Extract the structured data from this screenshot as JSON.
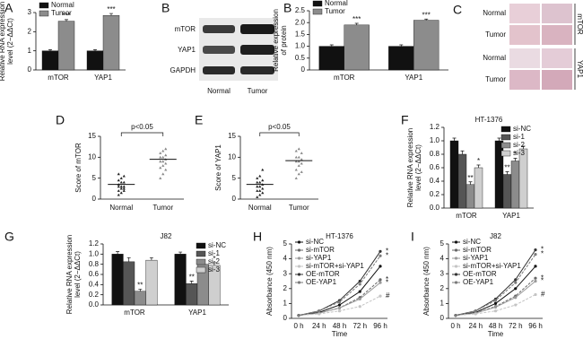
{
  "chart_data": [
    {
      "type": "bar",
      "panel": "A",
      "ylabel": [
        "Relative RNA expression",
        "level (2−ΔΔCt)"
      ],
      "categories": [
        "mTOR",
        "YAP1"
      ],
      "series": [
        {
          "name": "Normal",
          "color": "#111111",
          "values": [
            1.0,
            1.0
          ],
          "errors": [
            0.06,
            0.06
          ],
          "sig": [
            null,
            null
          ]
        },
        {
          "name": "Tumor",
          "color": "#8c8c8c",
          "values": [
            2.55,
            2.85
          ],
          "errors": [
            0.08,
            0.1
          ],
          "sig": [
            "***",
            "***"
          ]
        }
      ],
      "ylim": [
        0,
        3
      ],
      "yticks": [
        0,
        1,
        2,
        3
      ],
      "legend": "upper left"
    },
    {
      "type": "bar",
      "panel": "B",
      "ylabel": [
        "Relative expression",
        "of protein"
      ],
      "categories": [
        "mTOR",
        "YAP1"
      ],
      "series": [
        {
          "name": "Normal",
          "color": "#111111",
          "values": [
            1.0,
            1.0
          ],
          "errors": [
            0.06,
            0.06
          ],
          "sig": [
            null,
            null
          ]
        },
        {
          "name": "Tumor",
          "color": "#8c8c8c",
          "values": [
            1.9,
            2.1
          ],
          "errors": [
            0.07,
            0.05
          ],
          "sig": [
            "***",
            "***"
          ]
        }
      ],
      "ylim": [
        0,
        2.5
      ],
      "yticks": [
        0,
        0.5,
        {
          "value": 1,
          "label": "1.0"
        },
        1.5,
        {
          "value": 2,
          "label": "2.0"
        },
        2.5
      ],
      "legend": "upper left"
    },
    {
      "type": "dot",
      "panel": "D",
      "ylabel": [
        "Score of mTOR"
      ],
      "categories": [
        "Normal",
        "Tumor"
      ],
      "points": [
        [
          1,
          1.5,
          2,
          2,
          2.5,
          2.5,
          3,
          3,
          3,
          3.5,
          4,
          4,
          4.5,
          5,
          5.5,
          6
        ],
        [
          5,
          6,
          7,
          7.5,
          8,
          8.5,
          9,
          9,
          9.5,
          10,
          10,
          10.5,
          11,
          11.5,
          12
        ]
      ],
      "means": [
        3.5,
        9.5
      ],
      "annotation": "p<0.05",
      "ylim": [
        0,
        15
      ],
      "yticks": [
        0,
        5,
        10,
        15
      ]
    },
    {
      "type": "dot",
      "panel": "E",
      "ylabel": [
        "Score of YAP1"
      ],
      "categories": [
        "Normal",
        "Tumor"
      ],
      "points": [
        [
          0.5,
          1,
          1.5,
          2,
          2,
          2.5,
          3,
          3,
          3.5,
          4,
          4,
          4.5,
          5,
          5.5,
          7
        ],
        [
          5,
          6,
          6.5,
          7,
          8,
          8.5,
          9,
          9,
          9.5,
          10,
          10,
          11,
          11.5,
          12
        ]
      ],
      "means": [
        3.5,
        9.2
      ],
      "annotation": "p<0.05",
      "ylim": [
        0,
        15
      ],
      "yticks": [
        0,
        5,
        10,
        15
      ]
    },
    {
      "type": "bar",
      "panel": "F",
      "title": "HT-1376",
      "ylabel": [
        "Relative RNA expression",
        "level (2−ΔΔCt)"
      ],
      "categories": [
        "mTOR",
        "YAP1"
      ],
      "series": [
        {
          "name": "si-NC",
          "color": "#111111",
          "values": [
            1.0,
            1.0
          ],
          "errors": [
            0.04,
            0.04
          ],
          "sig": [
            null,
            null
          ]
        },
        {
          "name": "si-1",
          "color": "#555555",
          "values": [
            0.8,
            0.5
          ],
          "errors": [
            0.05,
            0.04
          ],
          "sig": [
            null,
            "**"
          ]
        },
        {
          "name": "si-2",
          "color": "#8c8c8c",
          "values": [
            0.35,
            0.7
          ],
          "errors": [
            0.04,
            0.04
          ],
          "sig": [
            "**",
            "*"
          ]
        },
        {
          "name": "si-3",
          "color": "#cfcfcf",
          "values": [
            0.6,
            0.88
          ],
          "errors": [
            0.04,
            0.04
          ],
          "sig": [
            "*",
            null
          ]
        }
      ],
      "ylim": [
        0,
        1.2
      ],
      "yticks": [
        {
          "value": 0,
          "label": "0.0"
        },
        0.2,
        0.4,
        0.6,
        0.8,
        {
          "value": 1,
          "label": "1.0"
        },
        1.2
      ],
      "legend": "upper right"
    },
    {
      "type": "bar",
      "panel": "G",
      "title": "J82",
      "ylabel": [
        "Relative RNA expression",
        "level (2−ΔΔCt)"
      ],
      "categories": [
        "mTOR",
        "YAP1"
      ],
      "series": [
        {
          "name": "si-NC",
          "color": "#111111",
          "values": [
            1.0,
            1.0
          ],
          "errors": [
            0.05,
            0.04
          ],
          "sig": [
            null,
            null
          ]
        },
        {
          "name": "si-1",
          "color": "#555555",
          "values": [
            0.85,
            0.42
          ],
          "errors": [
            0.08,
            0.05
          ],
          "sig": [
            null,
            "**"
          ]
        },
        {
          "name": "si-2",
          "color": "#8c8c8c",
          "values": [
            0.27,
            0.8
          ],
          "errors": [
            0.04,
            0.05
          ],
          "sig": [
            "**",
            null
          ]
        },
        {
          "name": "si-3",
          "color": "#cfcfcf",
          "values": [
            0.88,
            0.78
          ],
          "errors": [
            0.05,
            0.05
          ],
          "sig": [
            null,
            "*"
          ]
        }
      ],
      "ylim": [
        0,
        1.2
      ],
      "yticks": [
        {
          "value": 0,
          "label": "0.0"
        },
        0.2,
        0.4,
        0.6,
        0.8,
        {
          "value": 1,
          "label": "1.0"
        },
        1.2
      ],
      "legend": "upper right"
    },
    {
      "type": "line",
      "panel": "H",
      "title": "HT-1376",
      "ylabel": [
        "Absorbance (450 nm)"
      ],
      "xlabel": "Time",
      "categories": [
        "0 h",
        "24 h",
        "48 h",
        "72 h",
        "96 h"
      ],
      "series": [
        {
          "name": "si-NC",
          "color": "#111111",
          "values": [
            0.2,
            0.4,
            0.9,
            1.8,
            3.5
          ],
          "sig": null
        },
        {
          "name": "si-mTOR",
          "color": "#666666",
          "values": [
            0.2,
            0.35,
            0.7,
            1.4,
            2.6
          ],
          "sig": "*"
        },
        {
          "name": "si-YAP1",
          "color": "#999999",
          "values": [
            0.2,
            0.35,
            0.7,
            1.3,
            2.4
          ],
          "sig": "*"
        },
        {
          "name": "si-mTOR+si-YAP1",
          "color": "#c4c4c4",
          "values": [
            0.2,
            0.3,
            0.5,
            0.8,
            1.5
          ],
          "sig": "#"
        },
        {
          "name": "OE-mTOR",
          "color": "#333333",
          "values": [
            0.2,
            0.5,
            1.2,
            2.5,
            4.5
          ],
          "sig": "*"
        },
        {
          "name": "OE-YAP1",
          "color": "#7a7a7a",
          "values": [
            0.2,
            0.5,
            1.1,
            2.3,
            4.2
          ],
          "sig": "*"
        }
      ],
      "ylim": [
        0,
        5
      ],
      "yticks": [
        0,
        1,
        2,
        3,
        4,
        5
      ],
      "legend": "upper left"
    },
    {
      "type": "line",
      "panel": "I",
      "title": "J82",
      "ylabel": [
        "Absorbance (450 nm)"
      ],
      "xlabel": "Time",
      "categories": [
        "0 h",
        "24 h",
        "48 h",
        "72 h",
        "96 h"
      ],
      "series": [
        {
          "name": "si-NC",
          "color": "#111111",
          "values": [
            0.2,
            0.4,
            1.0,
            2.0,
            3.5
          ],
          "sig": null
        },
        {
          "name": "si-mTOR",
          "color": "#666666",
          "values": [
            0.2,
            0.35,
            0.8,
            1.5,
            2.7
          ],
          "sig": "*"
        },
        {
          "name": "si-YAP1",
          "color": "#999999",
          "values": [
            0.2,
            0.35,
            0.75,
            1.4,
            2.5
          ],
          "sig": "*"
        },
        {
          "name": "si-mTOR+si-YAP1",
          "color": "#c4c4c4",
          "values": [
            0.2,
            0.3,
            0.5,
            0.9,
            1.6
          ],
          "sig": "#"
        },
        {
          "name": "OE-mTOR",
          "color": "#333333",
          "values": [
            0.2,
            0.5,
            1.3,
            2.6,
            4.6
          ],
          "sig": "*"
        },
        {
          "name": "OE-YAP1",
          "color": "#7a7a7a",
          "values": [
            0.2,
            0.5,
            1.2,
            2.4,
            4.3
          ],
          "sig": "*"
        }
      ],
      "ylim": [
        0,
        5
      ],
      "yticks": [
        0,
        1,
        2,
        3,
        4,
        5
      ],
      "legend": "upper left"
    }
  ],
  "blot": {
    "panel": "B",
    "rows": [
      "mTOR",
      "YAP1",
      "GAPDH"
    ],
    "columns": [
      "Normal",
      "Tumor"
    ]
  },
  "ihc": {
    "panel": "C",
    "rows": [
      "Normal",
      "Tumor",
      "Normal",
      "Tumor"
    ],
    "groups": [
      "mTOR",
      "YAP1"
    ]
  }
}
